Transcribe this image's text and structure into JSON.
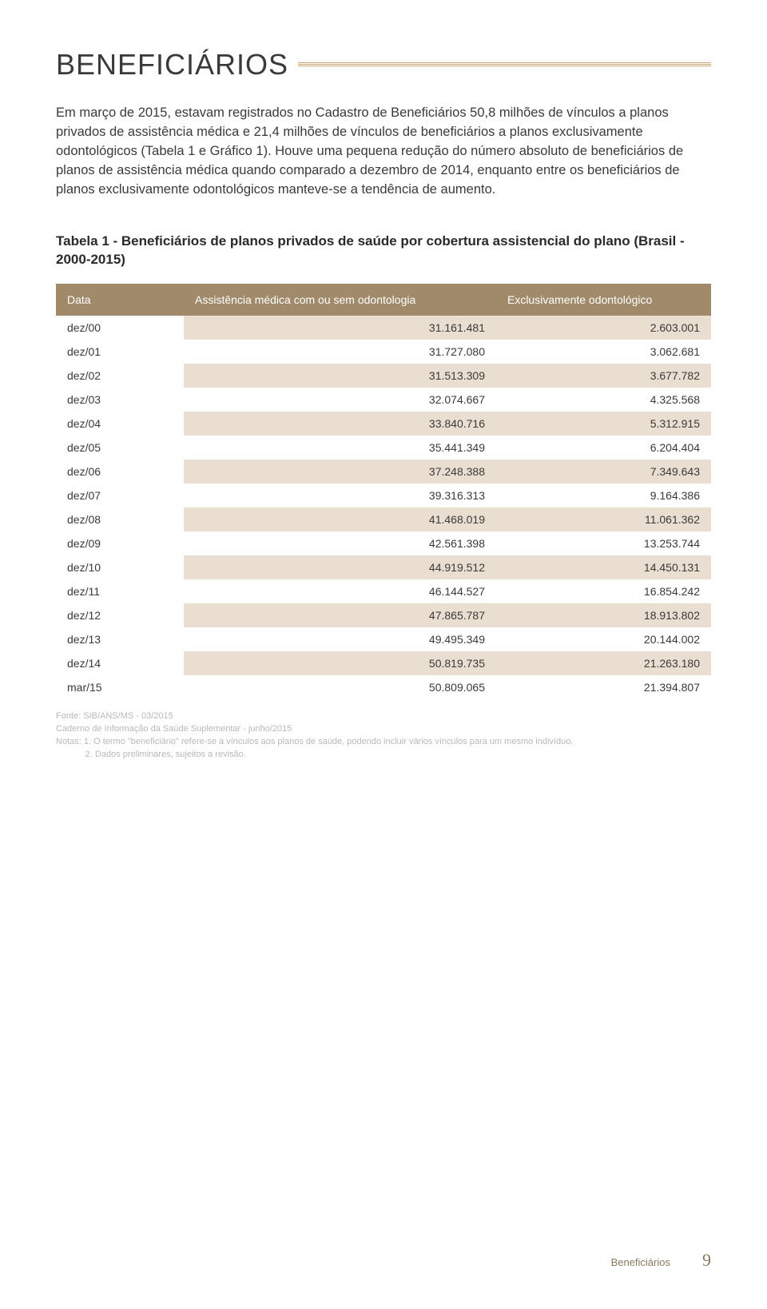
{
  "heading": "BENEFICIÁRIOS",
  "intro": "Em março de 2015, estavam registrados no Cadastro de Beneficiários 50,8 milhões de vínculos a planos privados de assistência médica e 21,4 milhões de vínculos de beneficiários a planos exclusivamente odontológicos (Tabela 1 e Gráfico 1). Houve uma pequena redução do número absoluto de beneficiários de planos de assistência médica quando comparado a dezembro de 2014, enquanto entre os beneficiários de planos exclusivamente odontológicos manteve-se a tendência de aumento.",
  "table": {
    "title": "Tabela 1 - Beneficiários de planos privados de saúde por cobertura assistencial do plano (Brasil - 2000-2015)",
    "columns": [
      "Data",
      "Assistência médica com ou sem odontologia",
      "Exclusivamente odontológico"
    ],
    "rows": [
      [
        "dez/00",
        "31.161.481",
        "2.603.001"
      ],
      [
        "dez/01",
        "31.727.080",
        "3.062.681"
      ],
      [
        "dez/02",
        "31.513.309",
        "3.677.782"
      ],
      [
        "dez/03",
        "32.074.667",
        "4.325.568"
      ],
      [
        "dez/04",
        "33.840.716",
        "5.312.915"
      ],
      [
        "dez/05",
        "35.441.349",
        "6.204.404"
      ],
      [
        "dez/06",
        "37.248.388",
        "7.349.643"
      ],
      [
        "dez/07",
        "39.316.313",
        "9.164.386"
      ],
      [
        "dez/08",
        "41.468.019",
        "11.061.362"
      ],
      [
        "dez/09",
        "42.561.398",
        "13.253.744"
      ],
      [
        "dez/10",
        "44.919.512",
        "14.450.131"
      ],
      [
        "dez/11",
        "46.144.527",
        "16.854.242"
      ],
      [
        "dez/12",
        "47.865.787",
        "18.913.802"
      ],
      [
        "dez/13",
        "49.495.349",
        "20.144.002"
      ],
      [
        "dez/14",
        "50.819.735",
        "21.263.180"
      ],
      [
        "mar/15",
        "50.809.065",
        "21.394.807"
      ]
    ],
    "header_bg": "#a08a6a",
    "header_text_color": "#ffffff",
    "row_alt_bg": "#e9ded0",
    "font_size": 14
  },
  "notes": {
    "line1": "Fonte: SIB/ANS/MS - 03/2015",
    "line2": "Caderno de Informação da Saúde Suplementar - junho/2015",
    "line3": "Notas:  1. O termo \"beneficiário\" refere-se a vínculos aos planos de saúde, podendo incluir vários vínculos para um mesmo indivíduo.",
    "line4": "            2. Dados preliminares, sujeitos a revisão."
  },
  "footer": {
    "section": "Beneficiários",
    "page": "9"
  },
  "colors": {
    "text": "#3a3a3a",
    "muted": "#b8b8b8",
    "accent": "#8a7a5e",
    "rule": "#c9a876"
  }
}
